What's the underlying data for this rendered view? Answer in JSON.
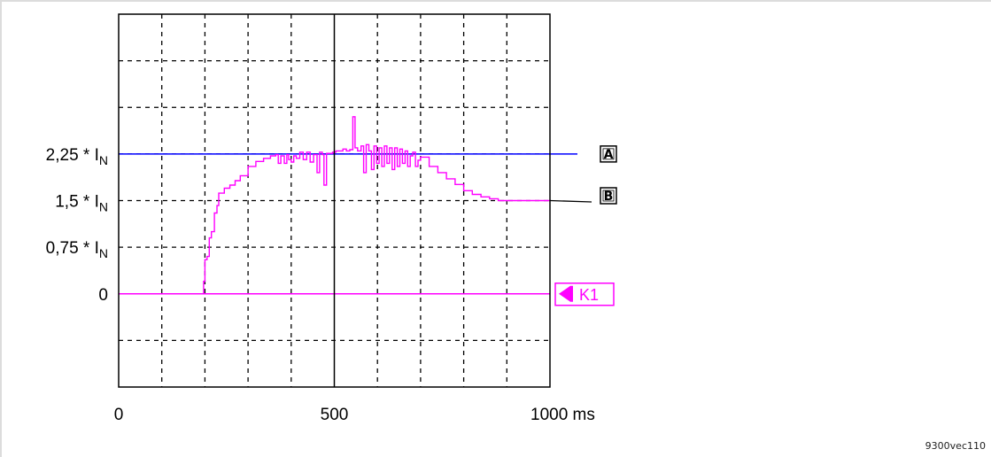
{
  "chart_data": {
    "type": "line",
    "title": "",
    "xlabel": "",
    "ylabel": "",
    "x_unit": "ms",
    "xlim": [
      0,
      1000
    ],
    "ylim": [
      -1.5,
      4.5
    ],
    "grid": true,
    "x_ticks": [
      {
        "value": 0,
        "label": "0"
      },
      {
        "value": 500,
        "label": "500"
      },
      {
        "value": 1000,
        "label": "1000 ms"
      }
    ],
    "y_ticks": [
      {
        "value": 2.25,
        "label": "2,25 * I",
        "sub": "N"
      },
      {
        "value": 1.5,
        "label": "1,5 * I",
        "sub": "N"
      },
      {
        "value": 0.75,
        "label": "0,75 * I",
        "sub": "N"
      },
      {
        "value": 0,
        "label": "0",
        "sub": ""
      }
    ],
    "reference_line": {
      "y": 2.25,
      "label": "A",
      "color": "#0000ff"
    },
    "series": [
      {
        "label": "B",
        "color": "#ff00ff",
        "points": [
          [
            0,
            0
          ],
          [
            190,
            0
          ],
          [
            197,
            0.2
          ],
          [
            200,
            0.55
          ],
          [
            205,
            0.6
          ],
          [
            210,
            0.9
          ],
          [
            215,
            1.0
          ],
          [
            222,
            1.3
          ],
          [
            228,
            1.42
          ],
          [
            232,
            1.62
          ],
          [
            245,
            1.7
          ],
          [
            258,
            1.75
          ],
          [
            270,
            1.82
          ],
          [
            282,
            1.9
          ],
          [
            300,
            2.05
          ],
          [
            318,
            2.13
          ],
          [
            336,
            2.18
          ],
          [
            352,
            2.22
          ],
          [
            364,
            2.24
          ],
          [
            370,
            2.1
          ],
          [
            376,
            2.22
          ],
          [
            384,
            2.1
          ],
          [
            390,
            2.24
          ],
          [
            394,
            2.16
          ],
          [
            400,
            2.12
          ],
          [
            406,
            2.22
          ],
          [
            412,
            2.18
          ],
          [
            420,
            2.28
          ],
          [
            428,
            2.16
          ],
          [
            436,
            2.28
          ],
          [
            444,
            2.12
          ],
          [
            452,
            2.24
          ],
          [
            460,
            1.95
          ],
          [
            466,
            2.28
          ],
          [
            472,
            2.24
          ],
          [
            476,
            1.75
          ],
          [
            482,
            2.26
          ],
          [
            496,
            2.28
          ],
          [
            504,
            2.3
          ],
          [
            512,
            2.3
          ],
          [
            520,
            2.33
          ],
          [
            528,
            2.3
          ],
          [
            536,
            2.32
          ],
          [
            543,
            2.85
          ],
          [
            548,
            2.35
          ],
          [
            554,
            2.3
          ],
          [
            562,
            2.38
          ],
          [
            568,
            1.95
          ],
          [
            574,
            2.4
          ],
          [
            580,
            2.3
          ],
          [
            586,
            2.0
          ],
          [
            592,
            2.38
          ],
          [
            598,
            2.1
          ],
          [
            604,
            2.35
          ],
          [
            610,
            2.05
          ],
          [
            616,
            2.38
          ],
          [
            622,
            2.1
          ],
          [
            628,
            2.35
          ],
          [
            634,
            2.0
          ],
          [
            640,
            2.35
          ],
          [
            646,
            2.05
          ],
          [
            652,
            2.33
          ],
          [
            658,
            2.1
          ],
          [
            664,
            2.3
          ],
          [
            670,
            2.05
          ],
          [
            676,
            2.22
          ],
          [
            682,
            2.28
          ],
          [
            688,
            2.05
          ],
          [
            694,
            2.15
          ],
          [
            700,
            2.2
          ],
          [
            720,
            2.05
          ],
          [
            740,
            1.95
          ],
          [
            760,
            1.85
          ],
          [
            780,
            1.76
          ],
          [
            800,
            1.66
          ],
          [
            820,
            1.6
          ],
          [
            840,
            1.56
          ],
          [
            860,
            1.53
          ],
          [
            880,
            1.5
          ],
          [
            1000,
            1.5
          ]
        ]
      }
    ],
    "cursor": {
      "x": 500
    },
    "trigger": {
      "y": 0,
      "label": "K1",
      "color": "#ff00ff"
    }
  },
  "ref_code": "9300vec110"
}
